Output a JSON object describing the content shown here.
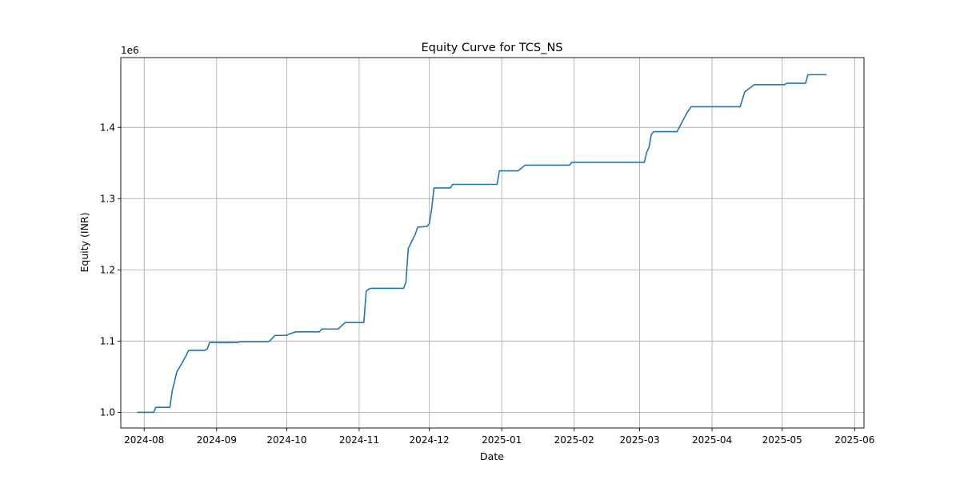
{
  "chart_data": {
    "type": "line",
    "title": "Equity Curve for TCS_NS",
    "xlabel": "Date",
    "ylabel": "Equity (INR)",
    "y_offset_label": "1e6",
    "grid": true,
    "legend": "none",
    "line_color": "#1f77b4",
    "xlim": [
      "2024-07-22",
      "2025-06-05"
    ],
    "ylim": [
      978000,
      1498000
    ],
    "x_ticks": [
      "2024-08-01",
      "2024-09-01",
      "2024-10-01",
      "2024-11-01",
      "2024-12-01",
      "2025-01-01",
      "2025-02-01",
      "2025-03-01",
      "2025-04-01",
      "2025-05-01",
      "2025-06-01"
    ],
    "x_tick_labels": [
      "2024-08",
      "2024-09",
      "2024-10",
      "2024-11",
      "2024-12",
      "2025-01",
      "2025-02",
      "2025-03",
      "2025-04",
      "2025-05",
      "2025-06"
    ],
    "y_ticks": [
      1000000,
      1100000,
      1200000,
      1300000,
      1400000
    ],
    "y_tick_labels": [
      "1.0",
      "1.1",
      "1.2",
      "1.3",
      "1.4"
    ],
    "series": [
      {
        "x": [
          "2024-07-29",
          "2024-08-05",
          "2024-08-06",
          "2024-08-12",
          "2024-08-13",
          "2024-08-15",
          "2024-08-17",
          "2024-08-19",
          "2024-08-20",
          "2024-08-27",
          "2024-08-28",
          "2024-08-29",
          "2024-09-02",
          "2024-09-10",
          "2024-09-11",
          "2024-09-23",
          "2024-09-24",
          "2024-09-26",
          "2024-10-01",
          "2024-10-02",
          "2024-10-05",
          "2024-10-15",
          "2024-10-16",
          "2024-10-23",
          "2024-10-26",
          "2024-11-03",
          "2024-11-04",
          "2024-11-05",
          "2024-11-06",
          "2024-11-20",
          "2024-11-21",
          "2024-11-22",
          "2024-11-25",
          "2024-11-26",
          "2024-11-30",
          "2024-12-01",
          "2024-12-02",
          "2024-12-03",
          "2024-12-10",
          "2024-12-11",
          "2024-12-30",
          "2024-12-31",
          "2025-01-08",
          "2025-01-11",
          "2025-01-30",
          "2025-01-31",
          "2025-03-03",
          "2025-03-04",
          "2025-03-05",
          "2025-03-06",
          "2025-03-07",
          "2025-03-17",
          "2025-03-21",
          "2025-03-23",
          "2025-04-13",
          "2025-04-15",
          "2025-04-19",
          "2025-04-20",
          "2025-05-02",
          "2025-05-03",
          "2025-05-11",
          "2025-05-12",
          "2025-05-20"
        ],
        "y": [
          1000000,
          1000000,
          1007000,
          1007000,
          1030000,
          1057000,
          1068000,
          1080000,
          1087000,
          1087000,
          1089000,
          1098000,
          1098000,
          1098000,
          1099000,
          1099000,
          1101000,
          1108000,
          1108000,
          1110000,
          1113000,
          1113000,
          1117000,
          1117000,
          1126000,
          1126000,
          1170000,
          1173000,
          1174000,
          1174000,
          1183000,
          1230000,
          1250000,
          1260000,
          1261000,
          1265000,
          1285000,
          1315000,
          1315000,
          1320000,
          1320000,
          1339000,
          1339000,
          1347000,
          1347000,
          1351000,
          1351000,
          1365000,
          1372000,
          1390000,
          1394000,
          1394000,
          1419000,
          1429000,
          1429000,
          1450000,
          1460000,
          1460000,
          1460000,
          1462000,
          1462000,
          1474000,
          1474000
        ]
      }
    ]
  }
}
